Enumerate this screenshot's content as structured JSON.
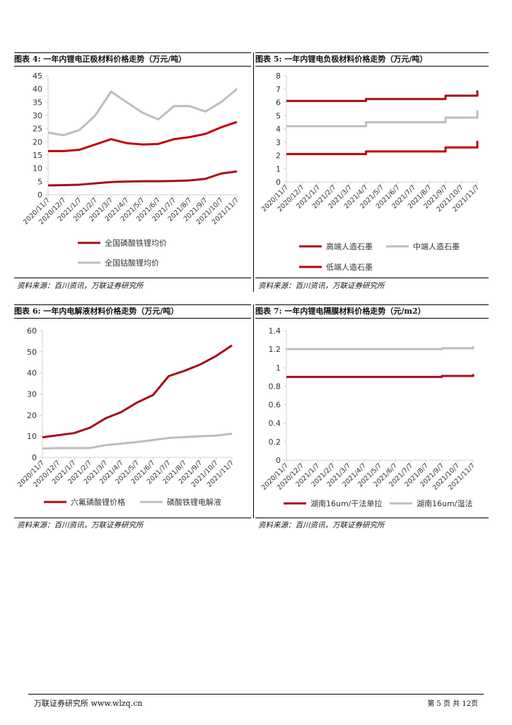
{
  "colors": {
    "dark_red": "#a50f15",
    "red": "#c0000c",
    "gray": "#bdbdbd",
    "axis": "#d0d0d0"
  },
  "sources": {
    "fig4": "资料来源：百川资讯，万联证券研究所",
    "fig5": "资料来源：百川资讯，万联证券研究所",
    "fig6": "资料来源：百川资讯，万联证券研究所",
    "fig7": "资料来源：百川资讯，万联证券研究所"
  },
  "footer": {
    "left": "万联证券研究所 www.wlzq.cn",
    "right": "第 5 页 共 12页"
  },
  "chart_data": [
    {
      "id": "fig4",
      "title": "图表 4:  一年内锂电正极材料价格走势（万元/吨）",
      "type": "line",
      "categories": [
        "2020/11/7",
        "2020/12/7",
        "2021/1/7",
        "2021/2/7",
        "2021/3/7",
        "2021/4/7",
        "2021/5/7",
        "2021/6/7",
        "2021/7/7",
        "2021/8/7",
        "2021/9/7",
        "2021/10/7",
        "2021/11/7"
      ],
      "ylim": [
        0,
        45
      ],
      "yticks": [
        0,
        5,
        10,
        15,
        20,
        25,
        30,
        35,
        40,
        45
      ],
      "legend_position": "bottom",
      "series": [
        {
          "name": "全国磷酸铁锂均价",
          "color_key": "dark_red",
          "values": [
            3.5,
            3.6,
            3.8,
            4.3,
            4.8,
            5.0,
            5.1,
            5.1,
            5.2,
            5.4,
            6.0,
            8.0,
            8.8
          ]
        },
        {
          "name": "全国钴酸锂均价",
          "color_key": "gray",
          "values": [
            23.5,
            22.5,
            24.5,
            30.0,
            39.0,
            35.0,
            31.0,
            28.5,
            33.5,
            33.5,
            31.5,
            35.0,
            40.0
          ]
        },
        {
          "name": "",
          "color_key": "red",
          "values": [
            16.5,
            16.5,
            17.0,
            19.0,
            21.0,
            19.5,
            19.0,
            19.2,
            21.0,
            21.8,
            23.0,
            25.5,
            27.5
          ]
        }
      ]
    },
    {
      "id": "fig5",
      "title": "图表 5:  一年内锂电负极材料价格走势（万元/吨）",
      "type": "line",
      "categories": [
        "2020/11/7",
        "2020/12/7",
        "2021/1/7",
        "2021/2/7",
        "2021/3/7",
        "2021/4/7",
        "2021/5/7",
        "2021/6/7",
        "2021/7/7",
        "2021/8/7",
        "2021/9/7",
        "2021/10/7",
        "2021/11/7"
      ],
      "ylim": [
        0,
        8
      ],
      "yticks": [
        0,
        1,
        2,
        3,
        4,
        5,
        6,
        7,
        8
      ],
      "legend_position": "bottom",
      "series": [
        {
          "name": "高端人造石墨",
          "color_key": "dark_red",
          "values": [
            6.1,
            6.1,
            6.1,
            6.1,
            6.1,
            6.25,
            6.25,
            6.25,
            6.25,
            6.25,
            6.5,
            6.5,
            6.9
          ]
        },
        {
          "name": "中端人造石墨",
          "color_key": "gray",
          "values": [
            4.2,
            4.2,
            4.2,
            4.2,
            4.2,
            4.5,
            4.5,
            4.5,
            4.5,
            4.5,
            4.85,
            4.85,
            5.4
          ]
        },
        {
          "name": "低端人造石墨",
          "color_key": "red",
          "values": [
            2.1,
            2.1,
            2.1,
            2.1,
            2.1,
            2.3,
            2.3,
            2.3,
            2.3,
            2.3,
            2.6,
            2.6,
            3.1
          ]
        }
      ]
    },
    {
      "id": "fig6",
      "title": "图表 6:  一年内电解液材料价格走势（万元/吨）",
      "type": "line",
      "categories": [
        "2020/11/7",
        "2020/12/7",
        "2021/1/7",
        "2021/2/7",
        "2021/3/7",
        "2021/4/7",
        "2021/5/7",
        "2021/6/7",
        "2021/7/7",
        "2021/8/7",
        "2021/9/7",
        "2021/10/7",
        "2021/11/7"
      ],
      "ylim": [
        0,
        60
      ],
      "yticks": [
        0,
        10,
        20,
        30,
        40,
        50,
        60
      ],
      "legend_position": "bottom",
      "series": [
        {
          "name": "六氟磷酸锂价格",
          "color_key": "dark_red",
          "values": [
            9.5,
            10.5,
            11.5,
            14.0,
            18.5,
            21.5,
            26.0,
            29.5,
            38.5,
            41.0,
            44.0,
            48.0,
            53.0
          ]
        },
        {
          "name": "磷酸铁锂电解液",
          "color_key": "gray",
          "values": [
            4.2,
            4.4,
            4.4,
            4.4,
            5.8,
            6.5,
            7.3,
            8.2,
            9.2,
            9.6,
            10.0,
            10.3,
            11.2
          ]
        }
      ]
    },
    {
      "id": "fig7",
      "title": "图表 7:  一年内锂电隔膜材料价格走势（元/m2）",
      "type": "line",
      "categories": [
        "2020/11/7",
        "2020/12/7",
        "2021/1/7",
        "2021/2/7",
        "2021/3/7",
        "2021/4/7",
        "2021/5/7",
        "2021/6/7",
        "2021/7/7",
        "2021/8/7",
        "2021/9/7",
        "2021/10/7",
        "2021/11/7"
      ],
      "ylim": [
        0,
        1.4
      ],
      "yticks": [
        0,
        0.2,
        0.4,
        0.6,
        0.8,
        1,
        1.2,
        1.4
      ],
      "legend_position": "bottom",
      "series": [
        {
          "name": "湖南16um/干法单拉",
          "color_key": "dark_red",
          "values": [
            0.9,
            0.9,
            0.9,
            0.9,
            0.9,
            0.9,
            0.9,
            0.9,
            0.9,
            0.9,
            0.91,
            0.91,
            0.93
          ]
        },
        {
          "name": "湖南16um/湿法",
          "color_key": "gray",
          "values": [
            1.2,
            1.2,
            1.2,
            1.2,
            1.2,
            1.2,
            1.2,
            1.2,
            1.2,
            1.2,
            1.21,
            1.21,
            1.23
          ]
        }
      ]
    }
  ]
}
